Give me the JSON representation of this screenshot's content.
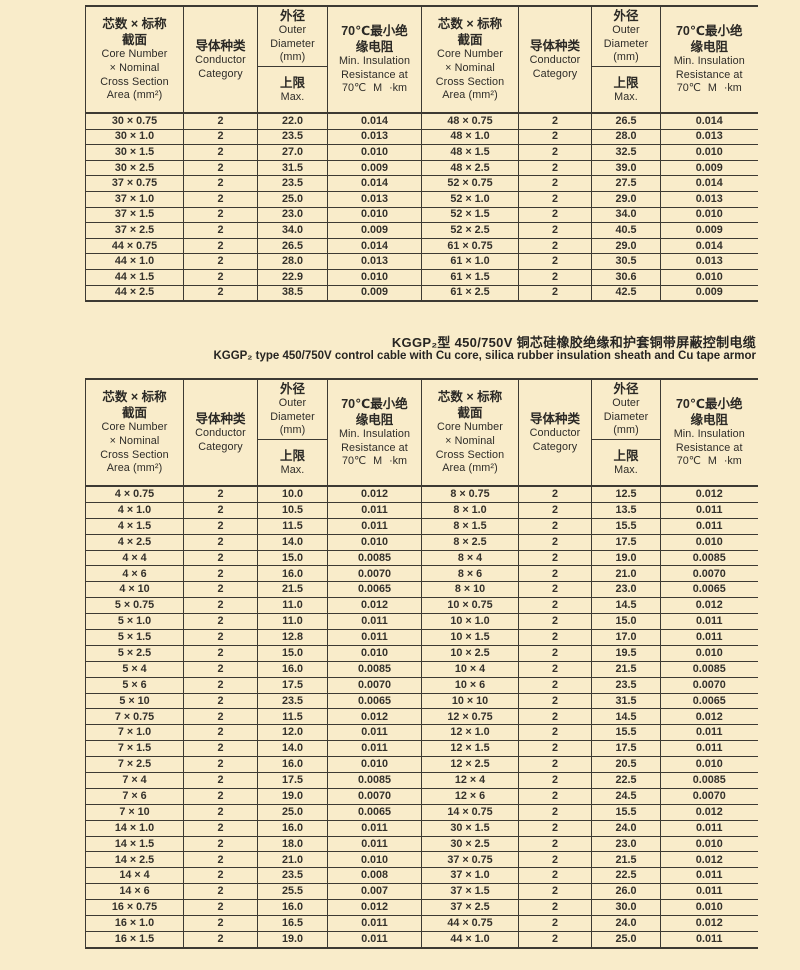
{
  "colors": {
    "page_bg": "#f9ecca",
    "line": "#3d3a33",
    "text": "#2e2c28"
  },
  "titles": {
    "zh": "KGGP₂型 450/750V 铜芯硅橡胶绝缘和护套铜带屏蔽控制电缆",
    "en": "KGGP₂ type 450/750V control cable with Cu core, silica rubber insulation sheath and Cu tape armor"
  },
  "header": {
    "spec": {
      "zh1": "芯数 × 标称",
      "zh2": "截面",
      "en1": "Core Number",
      "en2": "× Nominal",
      "en3": "Cross Section",
      "en4": "Area (mm²)"
    },
    "category": {
      "zh": "导体种类",
      "en1": "Conductor",
      "en2": "Category"
    },
    "diameter": {
      "zh": "外径",
      "en1": "Outer",
      "en2": "Diameter",
      "en3": "(mm)",
      "max_zh": "上限",
      "max_en": "Max."
    },
    "resistance": {
      "zh1": "70℃最小绝",
      "zh2": "缘电阻",
      "en1": "Min. Insulation",
      "en2": "Resistance at",
      "en3": "70℃ M ·km"
    }
  },
  "table1": {
    "left_rows": [
      [
        "30 × 0.75",
        "2",
        "22.0",
        "0.014"
      ],
      [
        "30 × 1.0",
        "2",
        "23.5",
        "0.013"
      ],
      [
        "30 × 1.5",
        "2",
        "27.0",
        "0.010"
      ],
      [
        "30 × 2.5",
        "2",
        "31.5",
        "0.009"
      ],
      [
        "37 × 0.75",
        "2",
        "23.5",
        "0.014"
      ],
      [
        "37 × 1.0",
        "2",
        "25.0",
        "0.013"
      ],
      [
        "37 × 1.5",
        "2",
        "23.0",
        "0.010"
      ],
      [
        "37 × 2.5",
        "2",
        "34.0",
        "0.009"
      ],
      [
        "44 × 0.75",
        "2",
        "26.5",
        "0.014"
      ],
      [
        "44 × 1.0",
        "2",
        "28.0",
        "0.013"
      ],
      [
        "44 × 1.5",
        "2",
        "22.9",
        "0.010"
      ],
      [
        "44 × 2.5",
        "2",
        "38.5",
        "0.009"
      ]
    ],
    "right_rows": [
      [
        "48 × 0.75",
        "2",
        "26.5",
        "0.014"
      ],
      [
        "48 × 1.0",
        "2",
        "28.0",
        "0.013"
      ],
      [
        "48 × 1.5",
        "2",
        "32.5",
        "0.010"
      ],
      [
        "48 × 2.5",
        "2",
        "39.0",
        "0.009"
      ],
      [
        "52 × 0.75",
        "2",
        "27.5",
        "0.014"
      ],
      [
        "52 × 1.0",
        "2",
        "29.0",
        "0.013"
      ],
      [
        "52 × 1.5",
        "2",
        "34.0",
        "0.010"
      ],
      [
        "52 × 2.5",
        "2",
        "40.5",
        "0.009"
      ],
      [
        "61 × 0.75",
        "2",
        "29.0",
        "0.014"
      ],
      [
        "61 × 1.0",
        "2",
        "30.5",
        "0.013"
      ],
      [
        "61 × 1.5",
        "2",
        "30.6",
        "0.010"
      ],
      [
        "61 × 2.5",
        "2",
        "42.5",
        "0.009"
      ]
    ]
  },
  "table2": {
    "left_rows": [
      [
        "4 × 0.75",
        "2",
        "10.0",
        "0.012"
      ],
      [
        "4 × 1.0",
        "2",
        "10.5",
        "0.011"
      ],
      [
        "4 × 1.5",
        "2",
        "11.5",
        "0.011"
      ],
      [
        "4 × 2.5",
        "2",
        "14.0",
        "0.010"
      ],
      [
        "4 × 4",
        "2",
        "15.0",
        "0.0085"
      ],
      [
        "4 × 6",
        "2",
        "16.0",
        "0.0070"
      ],
      [
        "4 × 10",
        "2",
        "21.5",
        "0.0065"
      ],
      [
        "5 × 0.75",
        "2",
        "11.0",
        "0.012"
      ],
      [
        "5 × 1.0",
        "2",
        "11.0",
        "0.011"
      ],
      [
        "5 × 1.5",
        "2",
        "12.8",
        "0.011"
      ],
      [
        "5 × 2.5",
        "2",
        "15.0",
        "0.010"
      ],
      [
        "5 × 4",
        "2",
        "16.0",
        "0.0085"
      ],
      [
        "5 × 6",
        "2",
        "17.5",
        "0.0070"
      ],
      [
        "5 × 10",
        "2",
        "23.5",
        "0.0065"
      ],
      [
        "7 × 0.75",
        "2",
        "11.5",
        "0.012"
      ],
      [
        "7 × 1.0",
        "2",
        "12.0",
        "0.011"
      ],
      [
        "7 × 1.5",
        "2",
        "14.0",
        "0.011"
      ],
      [
        "7 × 2.5",
        "2",
        "16.0",
        "0.010"
      ],
      [
        "7 × 4",
        "2",
        "17.5",
        "0.0085"
      ],
      [
        "7 × 6",
        "2",
        "19.0",
        "0.0070"
      ],
      [
        "7 × 10",
        "2",
        "25.0",
        "0.0065"
      ],
      [
        "14 × 1.0",
        "2",
        "16.0",
        "0.011"
      ],
      [
        "14 × 1.5",
        "2",
        "18.0",
        "0.011"
      ],
      [
        "14 × 2.5",
        "2",
        "21.0",
        "0.010"
      ],
      [
        "14 × 4",
        "2",
        "23.5",
        "0.008"
      ],
      [
        "14 × 6",
        "2",
        "25.5",
        "0.007"
      ],
      [
        "16 × 0.75",
        "2",
        "16.0",
        "0.012"
      ],
      [
        "16 × 1.0",
        "2",
        "16.5",
        "0.011"
      ],
      [
        "16 × 1.5",
        "2",
        "19.0",
        "0.011"
      ]
    ],
    "right_rows": [
      [
        "8 × 0.75",
        "2",
        "12.5",
        "0.012"
      ],
      [
        "8 × 1.0",
        "2",
        "13.5",
        "0.011"
      ],
      [
        "8 × 1.5",
        "2",
        "15.5",
        "0.011"
      ],
      [
        "8 × 2.5",
        "2",
        "17.5",
        "0.010"
      ],
      [
        "8 × 4",
        "2",
        "19.0",
        "0.0085"
      ],
      [
        "8 × 6",
        "2",
        "21.0",
        "0.0070"
      ],
      [
        "8 × 10",
        "2",
        "23.0",
        "0.0065"
      ],
      [
        "10 × 0.75",
        "2",
        "14.5",
        "0.012"
      ],
      [
        "10 × 1.0",
        "2",
        "15.0",
        "0.011"
      ],
      [
        "10 × 1.5",
        "2",
        "17.0",
        "0.011"
      ],
      [
        "10 × 2.5",
        "2",
        "19.5",
        "0.010"
      ],
      [
        "10 × 4",
        "2",
        "21.5",
        "0.0085"
      ],
      [
        "10 × 6",
        "2",
        "23.5",
        "0.0070"
      ],
      [
        "10 × 10",
        "2",
        "31.5",
        "0.0065"
      ],
      [
        "12 × 0.75",
        "2",
        "14.5",
        "0.012"
      ],
      [
        "12 × 1.0",
        "2",
        "15.5",
        "0.011"
      ],
      [
        "12 × 1.5",
        "2",
        "17.5",
        "0.011"
      ],
      [
        "12 × 2.5",
        "2",
        "20.5",
        "0.010"
      ],
      [
        "12 × 4",
        "2",
        "22.5",
        "0.0085"
      ],
      [
        "12 × 6",
        "2",
        "24.5",
        "0.0070"
      ],
      [
        "14 × 0.75",
        "2",
        "15.5",
        "0.012"
      ],
      [
        "30 × 1.5",
        "2",
        "24.0",
        "0.011"
      ],
      [
        "30 × 2.5",
        "2",
        "23.0",
        "0.010"
      ],
      [
        "37 × 0.75",
        "2",
        "21.5",
        "0.012"
      ],
      [
        "37 × 1.0",
        "2",
        "22.5",
        "0.011"
      ],
      [
        "37 × 1.5",
        "2",
        "26.0",
        "0.011"
      ],
      [
        "37 × 2.5",
        "2",
        "30.0",
        "0.010"
      ],
      [
        "44 × 0.75",
        "2",
        "24.0",
        "0.012"
      ],
      [
        "44 × 1.0",
        "2",
        "25.0",
        "0.011"
      ]
    ]
  }
}
